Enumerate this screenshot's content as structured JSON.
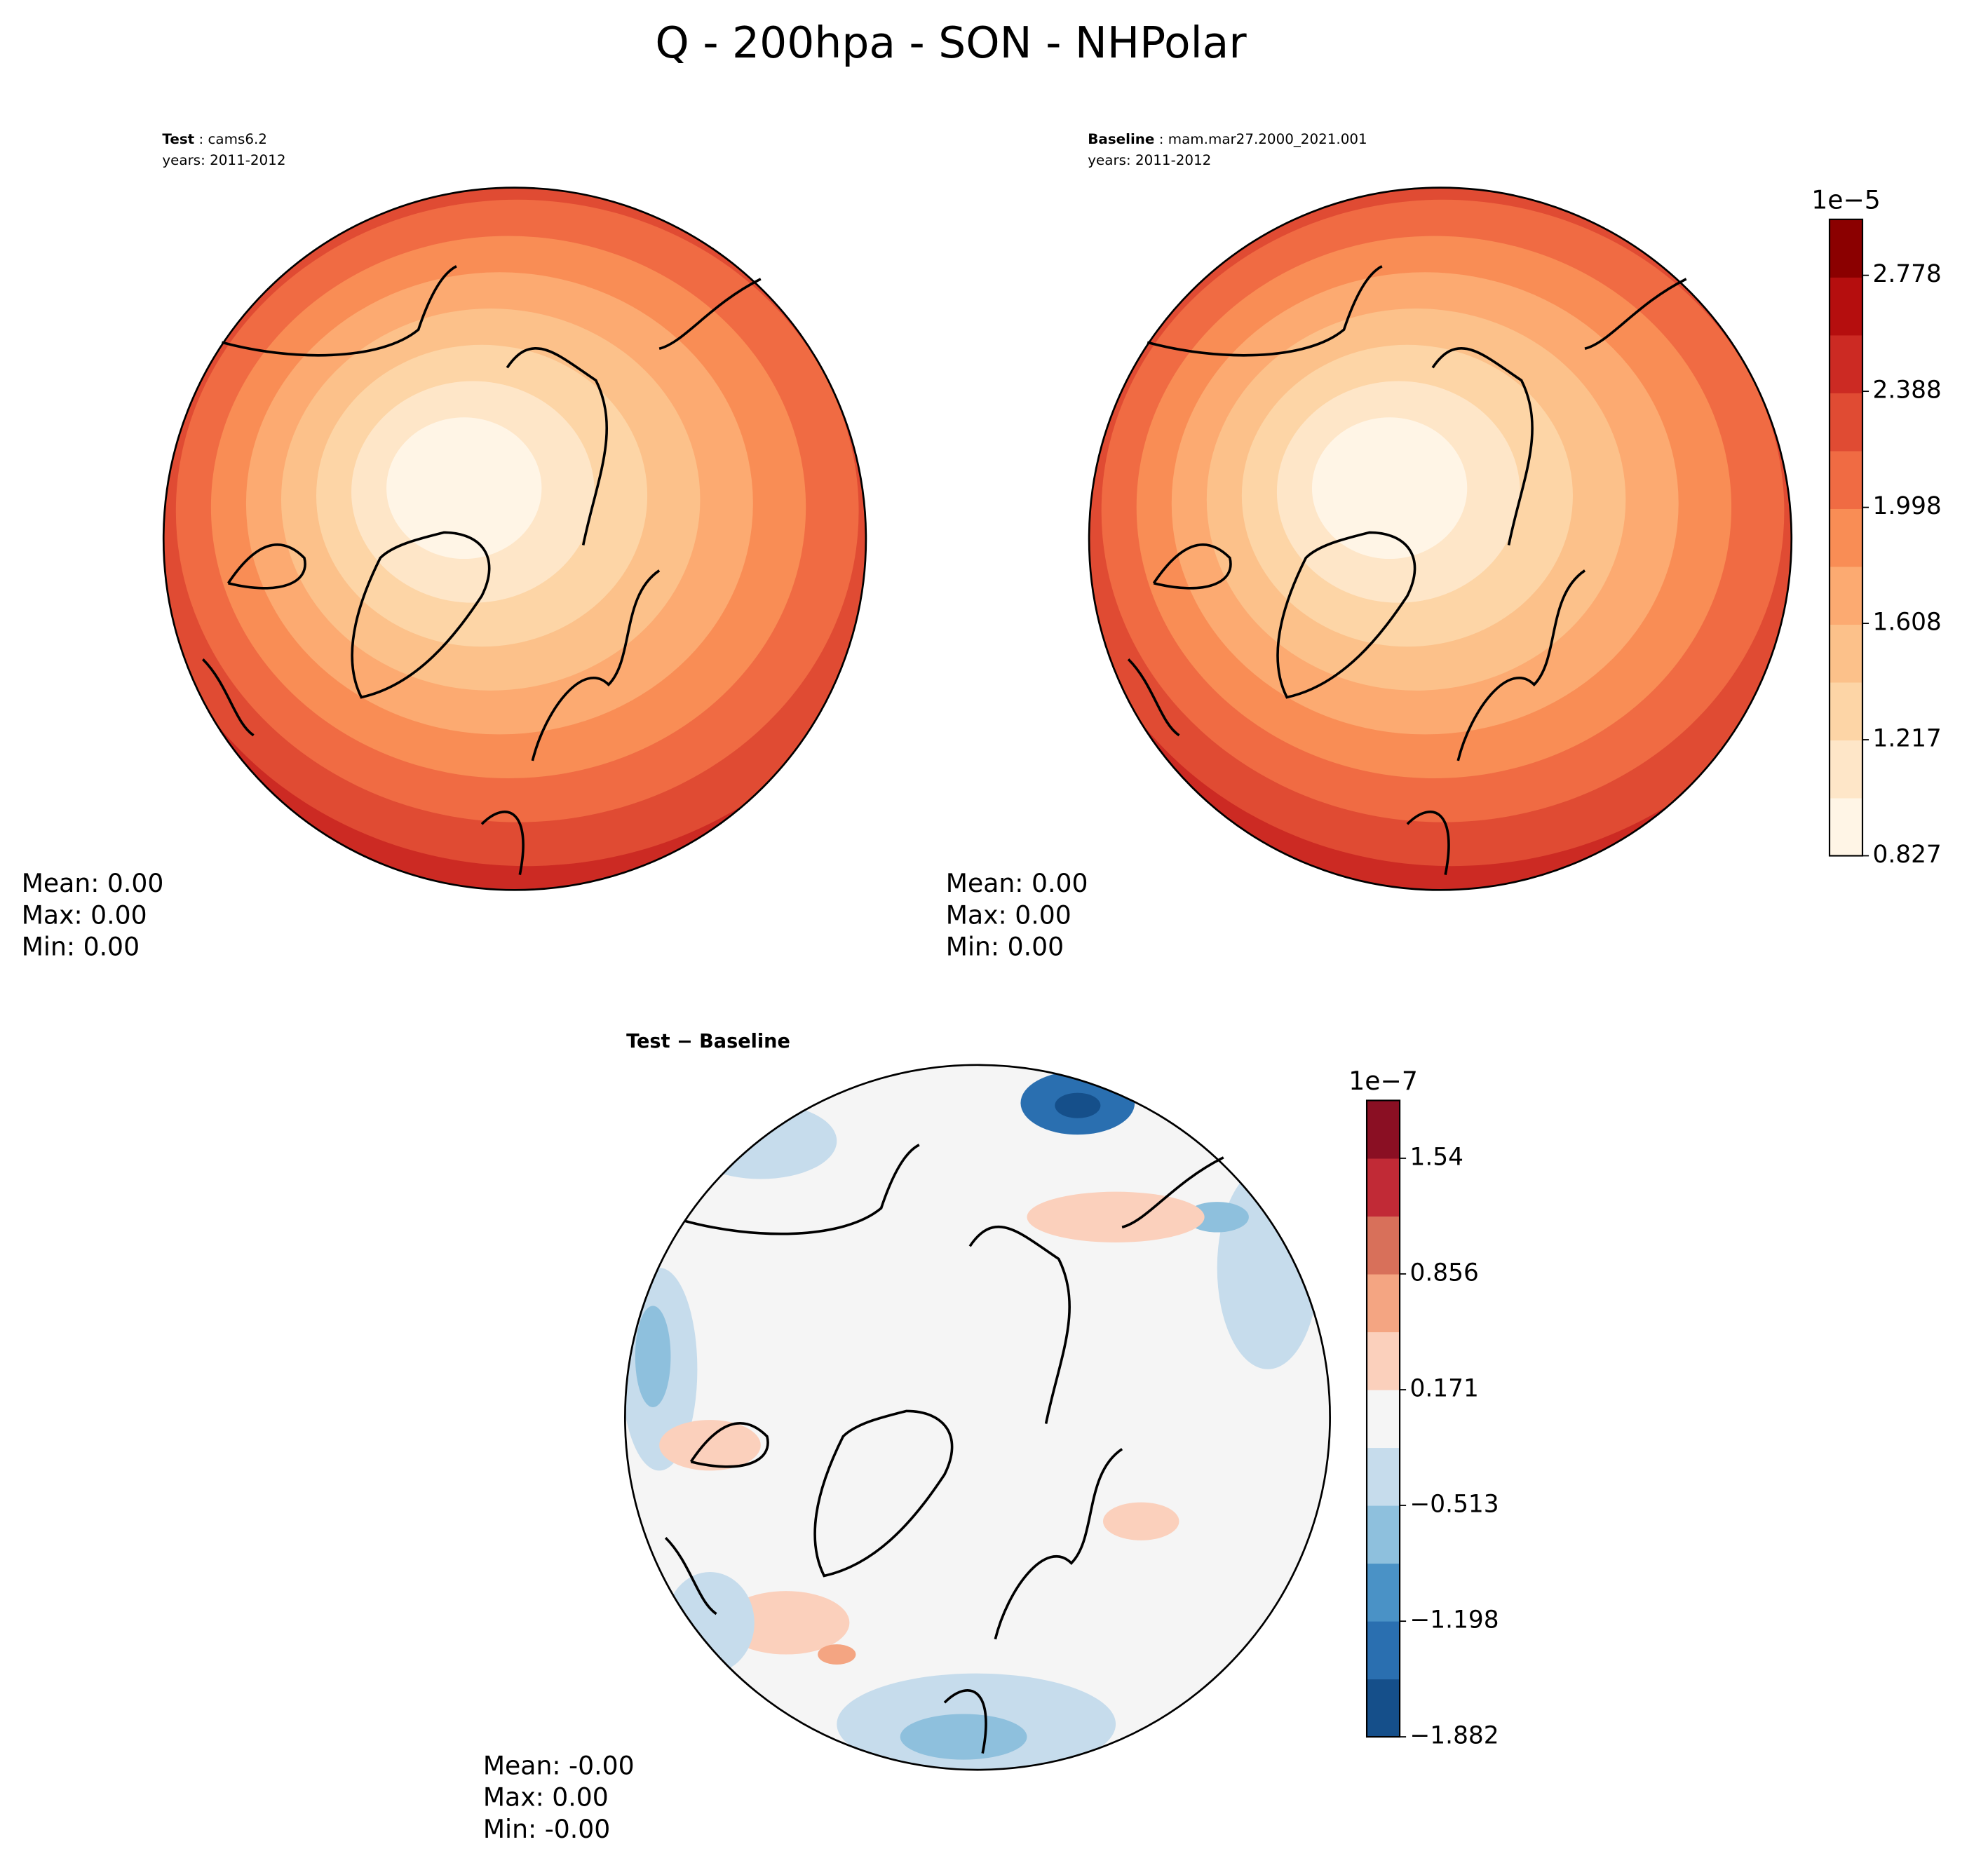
{
  "title": "Q - 200hpa - SON - NHPolar",
  "panels": [
    {
      "title_bold": "Test",
      "title_rest": ": cams6.2",
      "years": "years: 2011-2012",
      "stats": [
        "Mean:  0.00",
        "Max:  0.00",
        "Min:  0.00"
      ]
    },
    {
      "title_bold": "Baseline",
      "title_rest": ": mam.mar27.2000_2021.001",
      "years": "years: 2011-2012",
      "stats": [
        "Mean:  0.00",
        "Max:  0.00",
        "Min:  0.00"
      ]
    },
    {
      "title_bold": "Test − Baseline",
      "stats": [
        "Mean: -0.00",
        "Max:  0.00",
        "Min: -0.00"
      ]
    }
  ],
  "colorbars": [
    {
      "offset_label": "1e−5",
      "lim": [
        0.827,
        2.966
      ],
      "ticks": [
        0.827,
        1.217,
        1.608,
        1.998,
        2.388,
        2.778
      ],
      "colors": [
        "#fff5e6",
        "#fee6c8",
        "#fdd5a6",
        "#fcc18a",
        "#fcaa71",
        "#f98d55",
        "#f06b43",
        "#e04b33",
        "#cc2a23",
        "#b50e0e",
        "#8b0000"
      ]
    },
    {
      "offset_label": "1e−7",
      "lim": [
        -1.882,
        1.882
      ],
      "ticks": [
        {
          "value": -1.882,
          "label": "−1.882"
        },
        {
          "value": -1.198,
          "label": "−1.198"
        },
        {
          "value": -0.513,
          "label": "−0.513"
        },
        0.171,
        0.856,
        1.54
      ],
      "colors": [
        "#154f8a",
        "#2a6fb0",
        "#4a92c6",
        "#8ec0dd",
        "#c6dcec",
        "#f5f5f5",
        "#fbd0bc",
        "#f4a582",
        "#d8705a",
        "#c12a36",
        "#8a0f23"
      ]
    }
  ]
}
